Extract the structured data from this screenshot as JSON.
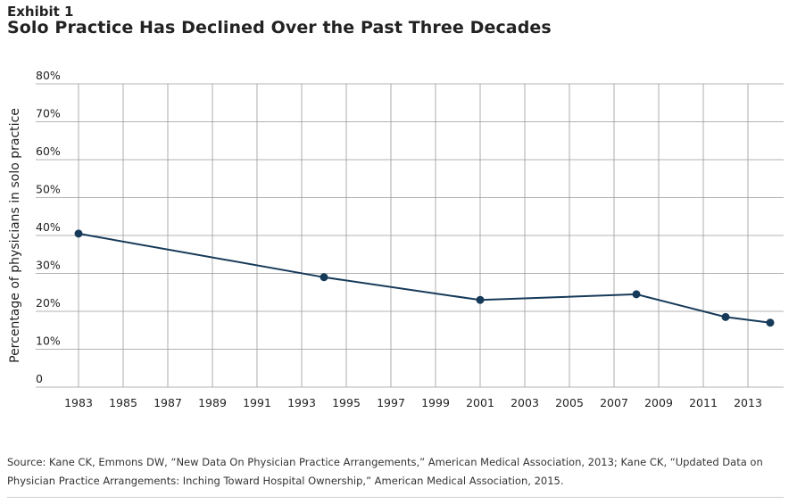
{
  "header": {
    "exhibit": "Exhibit 1",
    "title": "Solo Practice Has Declined Over the Past Three Decades"
  },
  "source": "Source: Kane CK, Emmons DW, “New Data On Physician Practice Arrangements,” American Medical Association, 2013; Kane CK, “Updated Data on Physician Practice Arrangements: Inching Toward Hospital Ownership,” American Medical Association, 2015.",
  "colors": {
    "line": "#163a59",
    "grid": "#9a9a9a",
    "text": "#222222"
  },
  "chart_data": {
    "type": "line",
    "title": "Solo Practice Has Declined Over the Past Three Decades",
    "xlabel": "",
    "ylabel": "Percentage of physicians in solo practice",
    "x_ticks": [
      1983,
      1985,
      1987,
      1989,
      1991,
      1993,
      1995,
      1997,
      1999,
      2001,
      2003,
      2005,
      2007,
      2009,
      2011,
      2013
    ],
    "y_ticks": [
      {
        "value": 0,
        "label": "0"
      },
      {
        "value": 10,
        "label": "10%"
      },
      {
        "value": 20,
        "label": "20%"
      },
      {
        "value": 30,
        "label": "30%"
      },
      {
        "value": 40,
        "label": "40%"
      },
      {
        "value": 50,
        "label": "50%"
      },
      {
        "value": 60,
        "label": "60%"
      },
      {
        "value": 70,
        "label": "70%"
      },
      {
        "value": 80,
        "label": "80%"
      }
    ],
    "xlim": [
      1983,
      2014.6
    ],
    "ylim": [
      0,
      80
    ],
    "grid": true,
    "series": [
      {
        "x": [
          1983,
          1994,
          2001,
          2008,
          2012,
          2014
        ],
        "y": [
          40.5,
          29.0,
          23.0,
          24.5,
          18.5,
          17.0
        ]
      }
    ]
  }
}
